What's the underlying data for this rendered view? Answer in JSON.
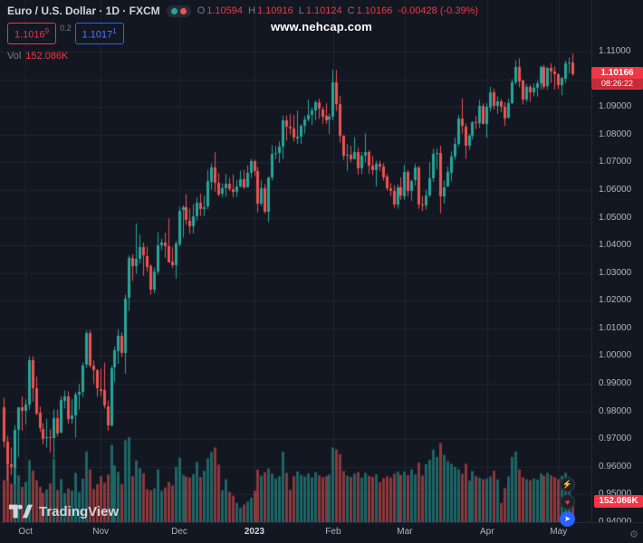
{
  "header": {
    "symbol_title": "Euro / U.S. Dollar · 1D · FXCM",
    "ohlc": {
      "o_label": "O",
      "o": "1.10594",
      "h_label": "H",
      "h": "1.10916",
      "l_label": "L",
      "l": "1.10124",
      "c_label": "C",
      "c": "1.10166",
      "change": "-0.00428 (-0.39%)"
    },
    "sell_price": "1.1016",
    "sell_sup": "9",
    "spread": "0.2",
    "buy_price": "1.1017",
    "buy_sup": "1",
    "vol_label": "Vol",
    "vol_value": "152.086K"
  },
  "watermark": "www.nehcap.com",
  "price_scale": {
    "last_price": "1.10166",
    "countdown": "08:26:22",
    "labels": [
      "1.11000",
      "1.10000",
      "1.09000",
      "1.08000",
      "1.07000",
      "1.06000",
      "1.05000",
      "1.04000",
      "1.03000",
      "1.02000",
      "1.01000",
      "1.00000",
      "0.99000",
      "0.98000",
      "0.97000",
      "0.96000",
      "0.95000",
      "0.94000"
    ]
  },
  "volume_tag": "152.086K",
  "footer": {
    "logo_text": "TradingView"
  },
  "icons": {
    "boost": "⚡",
    "reaction": "♥",
    "telegram": "➤",
    "gear": "⚙"
  },
  "colors": {
    "up": "#26a69a",
    "down": "#ef5350",
    "accent_red": "#f23645",
    "accent_blue": "#2962ff"
  },
  "chart_data": {
    "type": "candlestick",
    "title": "Euro / U.S. Dollar",
    "timeframe": "1D",
    "exchange": "FXCM",
    "y_range": [
      0.94,
      1.11
    ],
    "y_step": 0.01,
    "grid": true,
    "x_labels": [
      {
        "text": "Oct",
        "index": 6
      },
      {
        "text": "Nov",
        "index": 27
      },
      {
        "text": "Dec",
        "index": 49
      },
      {
        "text": "2023",
        "index": 70,
        "bold": true
      },
      {
        "text": "Feb",
        "index": 92
      },
      {
        "text": "Mar",
        "index": 112
      },
      {
        "text": "Apr",
        "index": 135
      },
      {
        "text": "May",
        "index": 155
      }
    ],
    "candles": [
      [
        0.9815,
        0.985,
        0.967,
        0.969
      ],
      [
        0.969,
        0.9712,
        0.955,
        0.9609
      ],
      [
        0.9609,
        0.967,
        0.957,
        0.9598
      ],
      [
        0.9598,
        0.975,
        0.9535,
        0.9734
      ],
      [
        0.9734,
        0.9816,
        0.9635,
        0.9815
      ],
      [
        0.9815,
        0.9854,
        0.973,
        0.9802
      ],
      [
        0.9802,
        0.9844,
        0.9753,
        0.9826
      ],
      [
        0.9826,
        0.9999,
        0.9806,
        0.9986
      ],
      [
        0.9986,
        0.9999,
        0.9835,
        0.9884
      ],
      [
        0.9884,
        0.9926,
        0.9787,
        0.9794
      ],
      [
        0.9794,
        0.9818,
        0.9726,
        0.9737
      ],
      [
        0.9737,
        0.9757,
        0.9681,
        0.9702
      ],
      [
        0.9702,
        0.9774,
        0.967,
        0.9706
      ],
      [
        0.9706,
        0.9736,
        0.9652,
        0.9703
      ],
      [
        0.9703,
        0.9807,
        0.9632,
        0.9775
      ],
      [
        0.9775,
        0.9807,
        0.971,
        0.9721
      ],
      [
        0.9721,
        0.9854,
        0.9721,
        0.984
      ],
      [
        0.984,
        0.9875,
        0.9811,
        0.9855
      ],
      [
        0.9855,
        0.9873,
        0.9756,
        0.9772
      ],
      [
        0.9772,
        0.9845,
        0.9755,
        0.9785
      ],
      [
        0.9785,
        0.987,
        0.9705,
        0.9861
      ],
      [
        0.9861,
        0.9899,
        0.9806,
        0.9871
      ],
      [
        0.9871,
        0.9977,
        0.9852,
        0.9967
      ],
      [
        0.9967,
        1.0093,
        0.9958,
        1.0082
      ],
      [
        1.0082,
        1.0094,
        0.9958,
        0.9965
      ],
      [
        0.9965,
        0.9985,
        0.9902,
        0.9948
      ],
      [
        0.9948,
        0.9953,
        0.9853,
        0.9881
      ],
      [
        0.9881,
        0.9954,
        0.9854,
        0.9876
      ],
      [
        0.9876,
        0.9976,
        0.981,
        0.982
      ],
      [
        0.982,
        0.984,
        0.973,
        0.975
      ],
      [
        0.975,
        0.9965,
        0.9745,
        0.9957
      ],
      [
        0.9957,
        1.0034,
        0.9906,
        1.002
      ],
      [
        1.002,
        1.0096,
        0.9972,
        1.0074
      ],
      [
        1.0074,
        1.0086,
        0.9997,
        1.0012
      ],
      [
        1.0012,
        1.0222,
        0.9936,
        1.0209
      ],
      [
        1.0209,
        1.0364,
        1.0163,
        1.0353
      ],
      [
        1.0353,
        1.0368,
        1.0271,
        1.0325
      ],
      [
        1.0325,
        1.0479,
        1.0297,
        1.035
      ],
      [
        1.035,
        1.0438,
        1.0334,
        1.0393
      ],
      [
        1.0393,
        1.041,
        1.029,
        1.0362
      ],
      [
        1.0362,
        1.0395,
        1.0305,
        1.0324
      ],
      [
        1.0324,
        1.0332,
        1.0222,
        1.0239
      ],
      [
        1.0239,
        1.032,
        1.0227,
        1.0304
      ],
      [
        1.0304,
        1.0448,
        1.0296,
        1.0399
      ],
      [
        1.0399,
        1.0424,
        1.0382,
        1.041
      ],
      [
        1.041,
        1.0446,
        1.0355,
        1.0398
      ],
      [
        1.0398,
        1.0497,
        1.0338,
        1.034
      ],
      [
        1.034,
        1.0394,
        1.0319,
        1.0328
      ],
      [
        1.0328,
        1.0416,
        1.028,
        1.0406
      ],
      [
        1.0406,
        1.0539,
        1.0395,
        1.0526
      ],
      [
        1.0526,
        1.0545,
        1.0428,
        1.0537
      ],
      [
        1.0537,
        1.0585,
        1.0475,
        1.049
      ],
      [
        1.049,
        1.0533,
        1.0442,
        1.0469
      ],
      [
        1.0469,
        1.0549,
        1.0443,
        1.0506
      ],
      [
        1.0506,
        1.0573,
        1.0489,
        1.0555
      ],
      [
        1.0555,
        1.0587,
        1.0506,
        1.0531
      ],
      [
        1.0531,
        1.058,
        1.0505,
        1.0538
      ],
      [
        1.0538,
        1.0673,
        1.053,
        1.0631
      ],
      [
        1.0631,
        1.0695,
        1.0601,
        1.0683
      ],
      [
        1.0683,
        1.0737,
        1.0594,
        1.0627
      ],
      [
        1.0627,
        1.0661,
        1.0577,
        1.0586
      ],
      [
        1.0586,
        1.0624,
        1.0574,
        1.0607
      ],
      [
        1.0607,
        1.0658,
        1.0576,
        1.0623
      ],
      [
        1.0623,
        1.0644,
        1.0596,
        1.0604
      ],
      [
        1.0604,
        1.0657,
        1.0573,
        1.0594
      ],
      [
        1.0594,
        1.0636,
        1.0575,
        1.0614
      ],
      [
        1.0614,
        1.067,
        1.0609,
        1.064
      ],
      [
        1.064,
        1.0672,
        1.0603,
        1.061
      ],
      [
        1.061,
        1.0689,
        1.0608,
        1.0661
      ],
      [
        1.0661,
        1.0713,
        1.0643,
        1.0705
      ],
      [
        1.0705,
        1.071,
        1.065,
        1.0668
      ],
      [
        1.0668,
        1.0684,
        1.0519,
        1.0549
      ],
      [
        1.0549,
        1.0635,
        1.0542,
        1.0605
      ],
      [
        1.0605,
        1.0621,
        1.0515,
        1.0521
      ],
      [
        1.0521,
        1.0648,
        1.0484,
        1.0645
      ],
      [
        1.0645,
        1.0761,
        1.0634,
        1.0731
      ],
      [
        1.0731,
        1.0759,
        1.0711,
        1.0734
      ],
      [
        1.0734,
        1.0776,
        1.0698,
        1.0756
      ],
      [
        1.0756,
        1.0868,
        1.0712,
        1.0852
      ],
      [
        1.0852,
        1.0869,
        1.0778,
        1.083
      ],
      [
        1.083,
        1.0874,
        1.08,
        1.0822
      ],
      [
        1.0822,
        1.087,
        1.0775,
        1.0789
      ],
      [
        1.0789,
        1.0887,
        1.0766,
        1.0794
      ],
      [
        1.0794,
        1.0838,
        1.0766,
        1.0832
      ],
      [
        1.0832,
        1.0868,
        1.0803,
        1.0856
      ],
      [
        1.0856,
        1.0927,
        1.0848,
        1.0871
      ],
      [
        1.0871,
        1.0898,
        1.0835,
        1.0887
      ],
      [
        1.0887,
        1.0923,
        1.0852,
        1.0916
      ],
      [
        1.0916,
        1.0929,
        1.0857,
        1.0892
      ],
      [
        1.0892,
        1.09,
        1.0838,
        1.0867
      ],
      [
        1.0867,
        1.0913,
        1.0839,
        1.0852
      ],
      [
        1.0852,
        1.0875,
        1.0802,
        1.0863
      ],
      [
        1.0863,
        1.1034,
        1.0852,
        1.0988
      ],
      [
        1.0988,
        1.1033,
        1.0885,
        1.0909
      ],
      [
        1.0909,
        1.094,
        1.0771,
        1.0796
      ],
      [
        1.0796,
        1.0798,
        1.0709,
        1.0725
      ],
      [
        1.0725,
        1.0766,
        1.0669,
        1.0727
      ],
      [
        1.0727,
        1.0759,
        1.07,
        1.0712
      ],
      [
        1.0712,
        1.0791,
        1.0711,
        1.0738
      ],
      [
        1.0738,
        1.0753,
        1.0656,
        1.0678
      ],
      [
        1.0678,
        1.0737,
        1.0657,
        1.0723
      ],
      [
        1.0723,
        1.0805,
        1.0699,
        1.0736
      ],
      [
        1.0736,
        1.0744,
        1.0659,
        1.0688
      ],
      [
        1.0688,
        1.0723,
        1.0654,
        1.0672
      ],
      [
        1.0672,
        1.0706,
        1.0613,
        1.0695
      ],
      [
        1.0695,
        1.0706,
        1.0668,
        1.0686
      ],
      [
        1.0686,
        1.0697,
        1.0634,
        1.0648
      ],
      [
        1.0648,
        1.0658,
        1.0598,
        1.0606
      ],
      [
        1.0606,
        1.0625,
        1.0577,
        1.0595
      ],
      [
        1.0595,
        1.0617,
        1.0536,
        1.0546
      ],
      [
        1.0546,
        1.062,
        1.0532,
        1.0608
      ],
      [
        1.0608,
        1.0645,
        1.0565,
        1.0577
      ],
      [
        1.0577,
        1.0691,
        1.0565,
        1.0666
      ],
      [
        1.0666,
        1.0672,
        1.0577,
        1.0597
      ],
      [
        1.0597,
        1.0637,
        1.056,
        1.0634
      ],
      [
        1.0634,
        1.0694,
        1.0616,
        1.068
      ],
      [
        1.068,
        1.0686,
        1.0532,
        1.0547
      ],
      [
        1.0547,
        1.0577,
        1.0524,
        1.0545
      ],
      [
        1.0545,
        1.0601,
        1.0529,
        1.0581
      ],
      [
        1.0581,
        1.0701,
        1.0575,
        1.0643
      ],
      [
        1.0643,
        1.0749,
        1.0629,
        1.0731
      ],
      [
        1.0731,
        1.075,
        1.0674,
        1.0734
      ],
      [
        1.0734,
        1.076,
        1.0516,
        1.0577
      ],
      [
        1.0577,
        1.0635,
        1.0551,
        1.0611
      ],
      [
        1.0611,
        1.0685,
        1.0611,
        1.0664
      ],
      [
        1.0664,
        1.074,
        1.0632,
        1.0722
      ],
      [
        1.0722,
        1.0789,
        1.0709,
        1.0767
      ],
      [
        1.0767,
        1.087,
        1.0758,
        1.0857
      ],
      [
        1.0857,
        1.093,
        1.0804,
        1.083
      ],
      [
        1.083,
        1.084,
        1.0713,
        1.076
      ],
      [
        1.076,
        1.0803,
        1.0745,
        1.0796
      ],
      [
        1.0796,
        1.0848,
        1.0782,
        1.0845
      ],
      [
        1.0845,
        1.0867,
        1.0819,
        1.0843
      ],
      [
        1.0843,
        1.0926,
        1.0824,
        1.0905
      ],
      [
        1.0905,
        1.0913,
        1.0838,
        1.0839
      ],
      [
        1.0839,
        1.0913,
        1.0788,
        1.09
      ],
      [
        1.09,
        1.0973,
        1.0884,
        1.0954
      ],
      [
        1.0954,
        1.0966,
        1.089,
        1.0905
      ],
      [
        1.0905,
        1.0938,
        1.0875,
        1.0921
      ],
      [
        1.0921,
        1.0928,
        1.088,
        1.0902
      ],
      [
        1.0902,
        1.0917,
        1.0831,
        1.086
      ],
      [
        1.086,
        1.0929,
        1.0858,
        1.0913
      ],
      [
        1.0913,
        1.1,
        1.0911,
        1.0989
      ],
      [
        1.0989,
        1.1068,
        1.0981,
        1.1046
      ],
      [
        1.1046,
        1.1076,
        1.0971,
        1.0995
      ],
      [
        1.0995,
        1.0999,
        1.0909,
        1.0926
      ],
      [
        1.0926,
        1.0983,
        1.0917,
        1.0972
      ],
      [
        1.0972,
        1.098,
        1.0918,
        1.0954
      ],
      [
        1.0954,
        1.0985,
        1.0938,
        1.097
      ],
      [
        1.097,
        1.0995,
        1.0937,
        1.0985
      ],
      [
        1.0985,
        1.1049,
        1.0963,
        1.1045
      ],
      [
        1.1045,
        1.1052,
        1.0964,
        1.0973
      ],
      [
        1.0973,
        1.1044,
        1.0962,
        1.104
      ],
      [
        1.104,
        1.1058,
        1.0987,
        1.1028
      ],
      [
        1.1028,
        1.1046,
        1.0963,
        1.1019
      ],
      [
        1.1019,
        1.1022,
        1.0964,
        1.0979
      ],
      [
        1.0979,
        1.1007,
        1.0942,
        1.1005
      ],
      [
        1.1005,
        1.1068,
        1.0987,
        1.1059
      ],
      [
        1.1059,
        1.1078,
        1.102,
        1.10594
      ],
      [
        1.10594,
        1.10916,
        1.10124,
        1.10166
      ]
    ],
    "volumes": [
      310,
      420,
      285,
      510,
      345,
      262,
      298,
      455,
      380,
      310,
      262,
      218,
      242,
      287,
      465,
      239,
      318,
      217,
      249,
      234,
      362,
      224,
      321,
      517,
      388,
      246,
      281,
      338,
      292,
      350,
      565,
      417,
      368,
      281,
      598,
      621,
      338,
      452,
      396,
      359,
      246,
      237,
      251,
      389,
      233,
      258,
      297,
      272,
      406,
      472,
      348,
      336,
      329,
      354,
      441,
      333,
      378,
      469,
      513,
      546,
      422,
      238,
      317,
      226,
      198,
      147,
      112,
      134,
      156,
      183,
      233,
      386,
      342,
      368,
      394,
      357,
      321,
      339,
      516,
      363,
      241,
      339,
      374,
      348,
      336,
      358,
      329,
      367,
      345,
      332,
      339,
      351,
      547,
      532,
      498,
      376,
      342,
      333,
      357,
      369,
      328,
      363,
      341,
      334,
      352,
      296,
      324,
      338,
      329,
      358,
      371,
      346,
      371,
      346,
      389,
      352,
      437,
      344,
      426,
      458,
      532,
      478,
      578,
      492,
      448,
      429,
      407,
      389,
      357,
      429,
      307,
      376,
      339,
      328,
      317,
      322,
      336,
      378,
      316,
      146,
      252,
      336,
      478,
      516,
      388,
      331,
      317,
      309,
      322,
      314,
      358,
      342,
      363,
      345,
      332,
      318,
      342,
      363,
      331,
      152.086
    ],
    "last_close": 1.10166,
    "last_volume_label": "152.086K"
  }
}
